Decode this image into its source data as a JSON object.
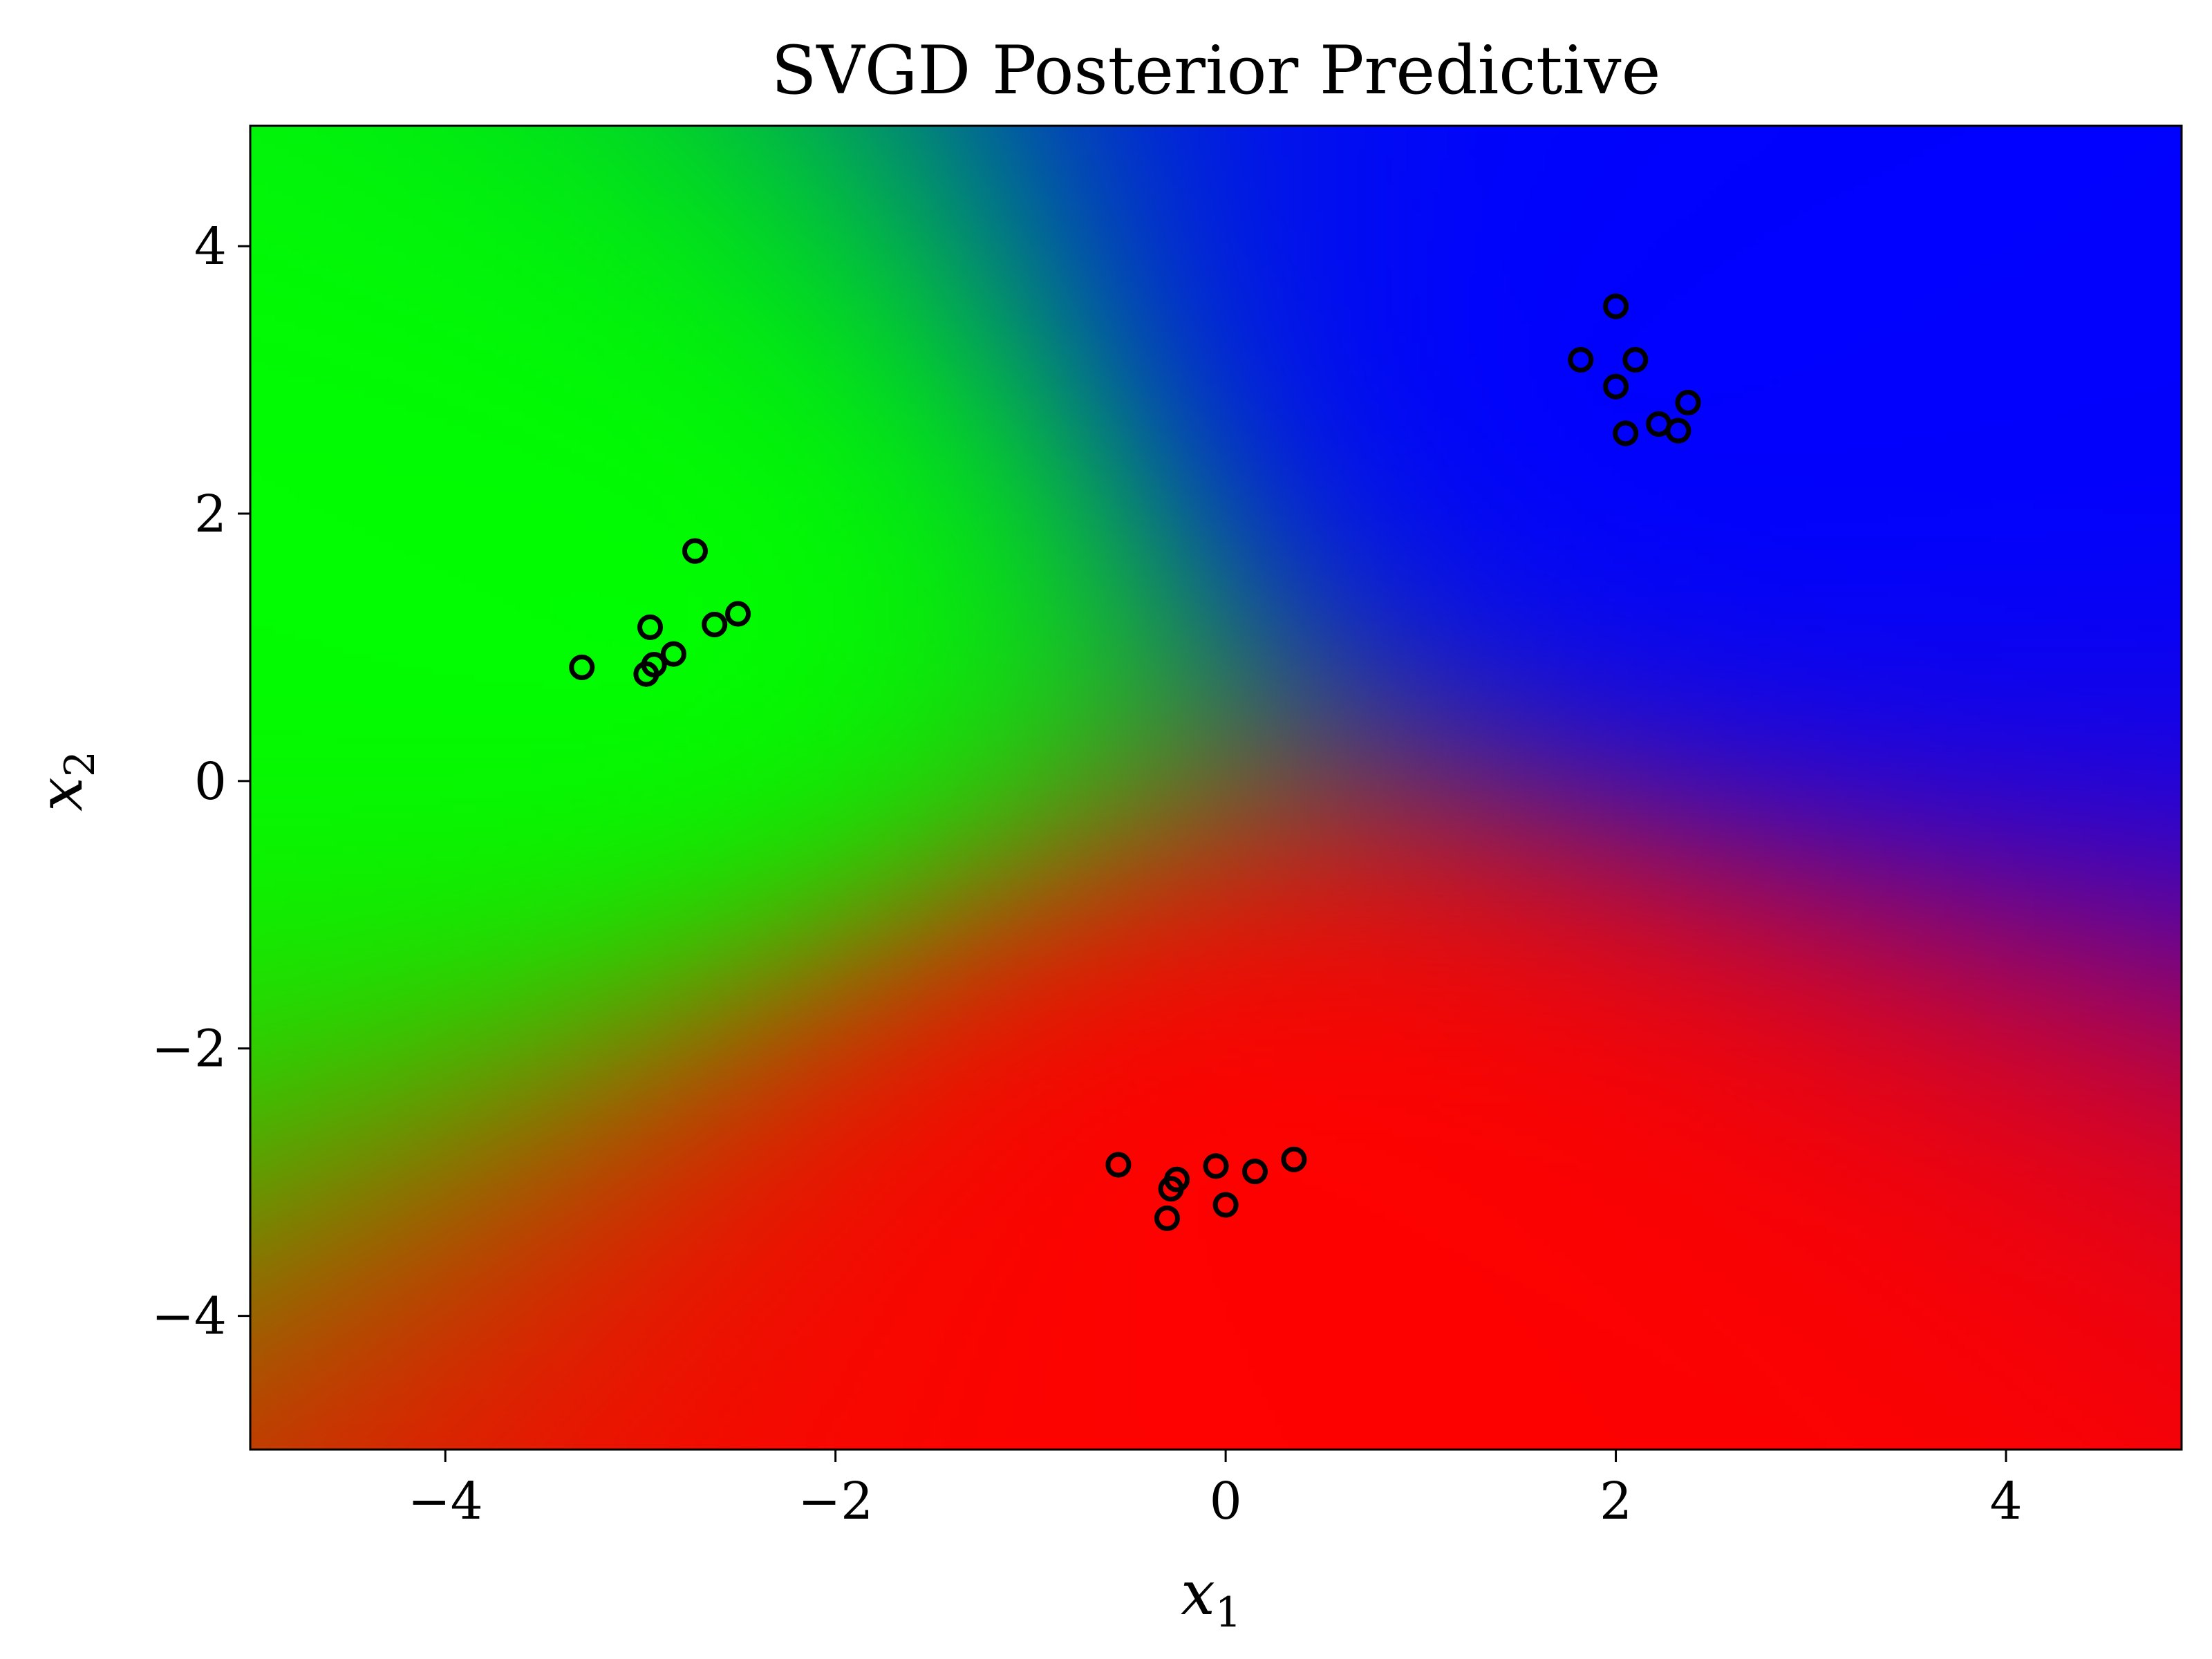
{
  "chart_data": {
    "type": "heatmap",
    "title": "SVGD Posterior Predictive",
    "xlabel": "x",
    "xlabel_sub": "1",
    "ylabel": "x",
    "ylabel_sub": "2",
    "xlim": [
      -5,
      4.9
    ],
    "ylim": [
      -5,
      4.9
    ],
    "xticks": [
      -4,
      -2,
      0,
      2,
      4
    ],
    "yticks": [
      -4,
      -2,
      0,
      2,
      4
    ],
    "xtick_labels": [
      "−4",
      "−2",
      "0",
      "2",
      "4"
    ],
    "ytick_labels": [
      "−4",
      "−2",
      "0",
      "2",
      "4"
    ],
    "grid": false,
    "colors": {
      "class_red": "#ff0000",
      "class_green": "#00ff00",
      "class_blue": "#0000ff",
      "marker_edge": "#000000"
    },
    "class_centers": [
      {
        "class": "red",
        "x": 0.0,
        "y": -3.0
      },
      {
        "class": "green",
        "x": -2.9,
        "y": 1.1
      },
      {
        "class": "blue",
        "x": 2.1,
        "y": 3.0
      }
    ],
    "series": [
      {
        "class": "green",
        "points": [
          [
            -3.3,
            0.85
          ],
          [
            -2.95,
            1.15
          ],
          [
            -2.97,
            0.8
          ],
          [
            -2.93,
            0.87
          ],
          [
            -2.83,
            0.95
          ],
          [
            -2.72,
            1.72
          ],
          [
            -2.62,
            1.17
          ],
          [
            -2.5,
            1.25
          ]
        ]
      },
      {
        "class": "red",
        "points": [
          [
            -0.55,
            -2.87
          ],
          [
            -0.3,
            -3.27
          ],
          [
            -0.28,
            -3.05
          ],
          [
            -0.25,
            -2.98
          ],
          [
            -0.05,
            -2.88
          ],
          [
            0.0,
            -3.17
          ],
          [
            0.15,
            -2.92
          ],
          [
            0.35,
            -2.83
          ]
        ]
      },
      {
        "class": "blue",
        "points": [
          [
            1.82,
            3.15
          ],
          [
            2.0,
            3.55
          ],
          [
            2.0,
            2.95
          ],
          [
            2.05,
            2.6
          ],
          [
            2.1,
            3.15
          ],
          [
            2.22,
            2.67
          ],
          [
            2.32,
            2.62
          ],
          [
            2.37,
            2.83
          ]
        ]
      }
    ]
  }
}
